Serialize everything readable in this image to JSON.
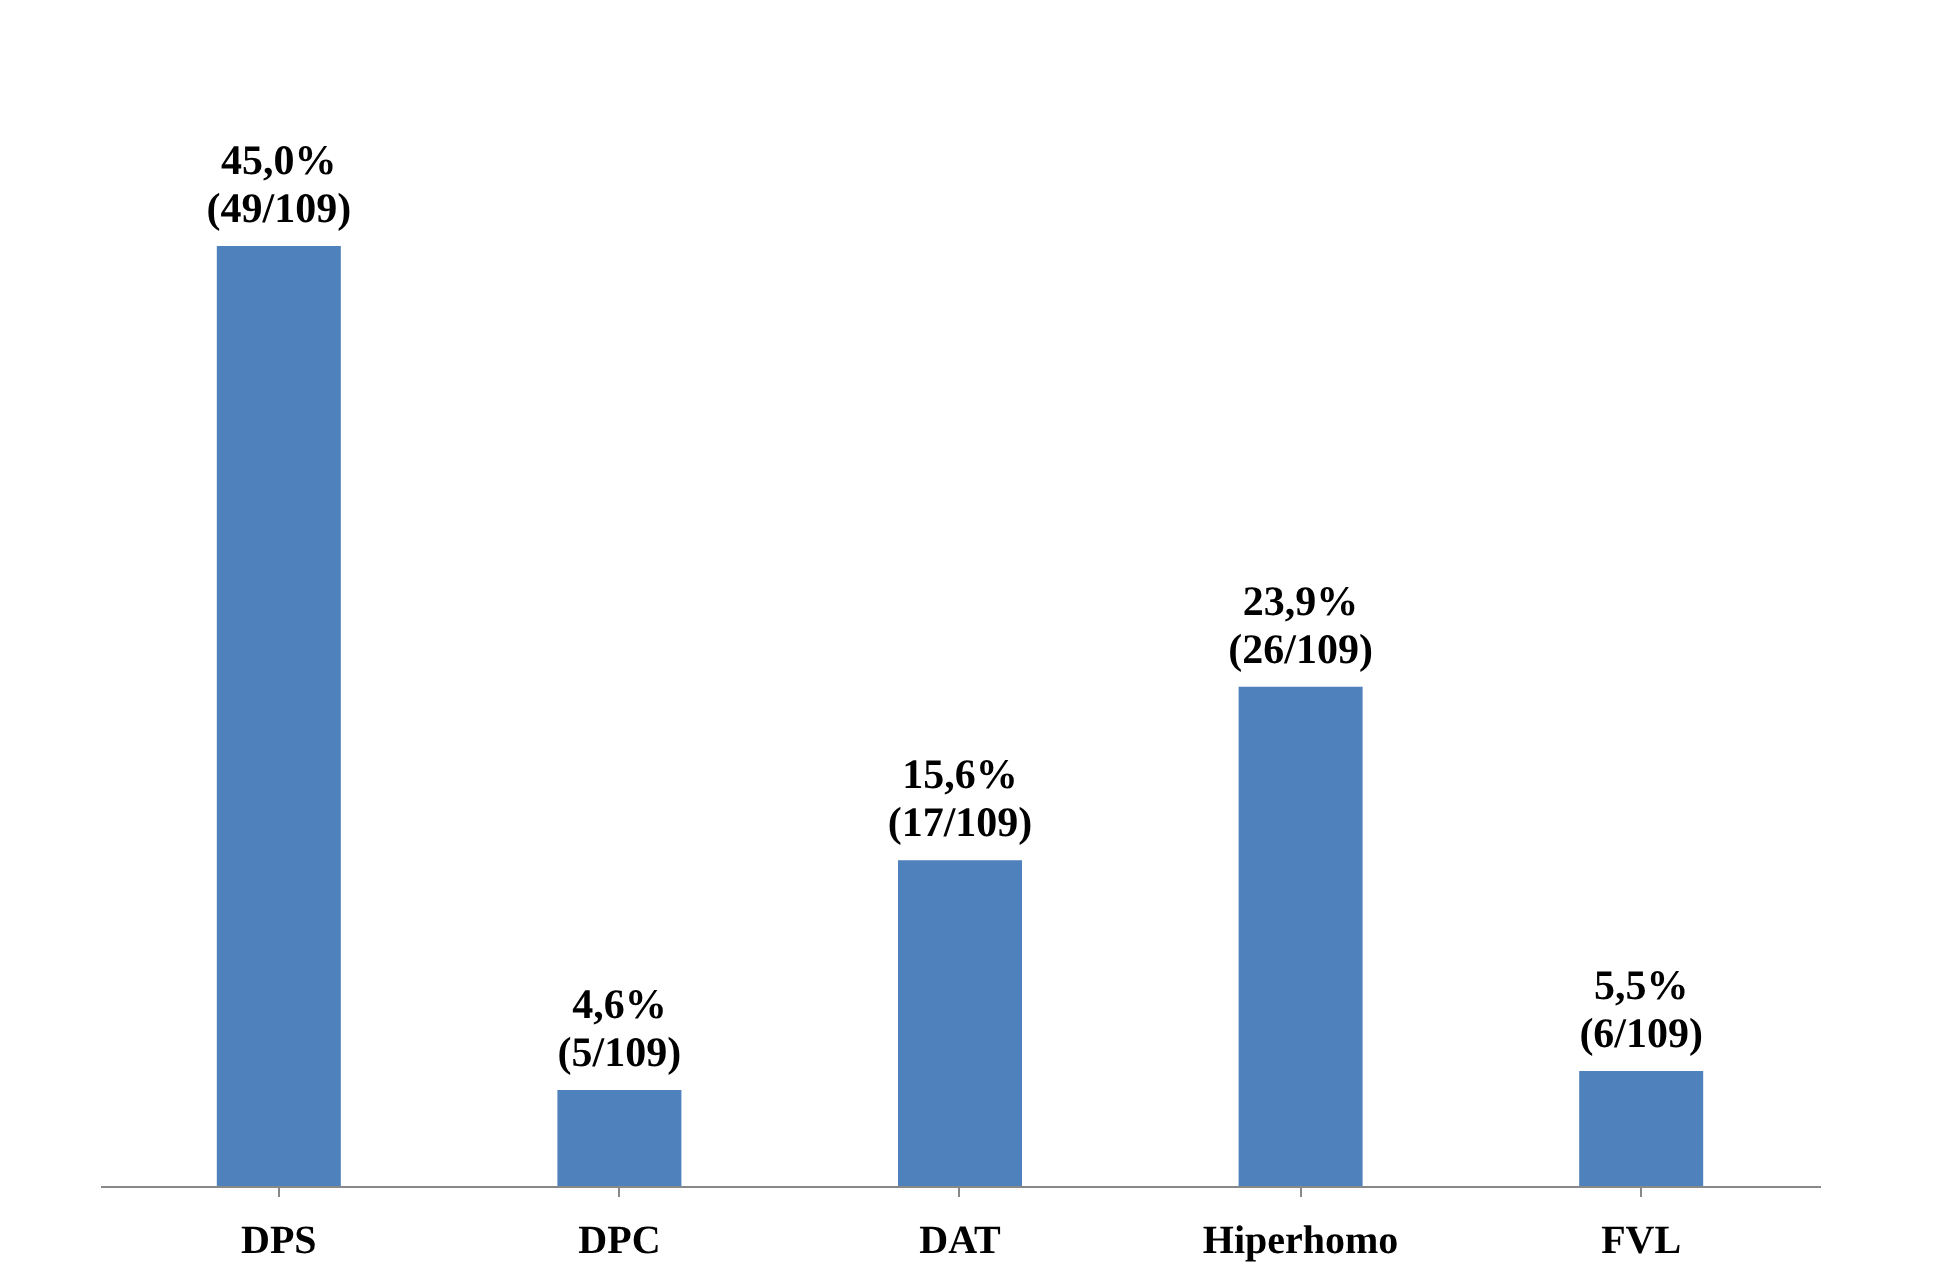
{
  "chart_data": {
    "type": "bar",
    "categories": [
      "DPS",
      "DPC",
      "DAT",
      "Hiperhomo",
      "FVL"
    ],
    "values": [
      45.0,
      4.6,
      15.6,
      23.9,
      5.5
    ],
    "color": "#4f81bd",
    "value_labels": [
      "45,0%\n(49/109)",
      "4,6%\n(5/109)",
      "15,6%\n(17/109)",
      "23,9%\n(26/109)",
      "5,5%\n(6/109)"
    ],
    "grid": false,
    "tick_labels": "x"
  }
}
